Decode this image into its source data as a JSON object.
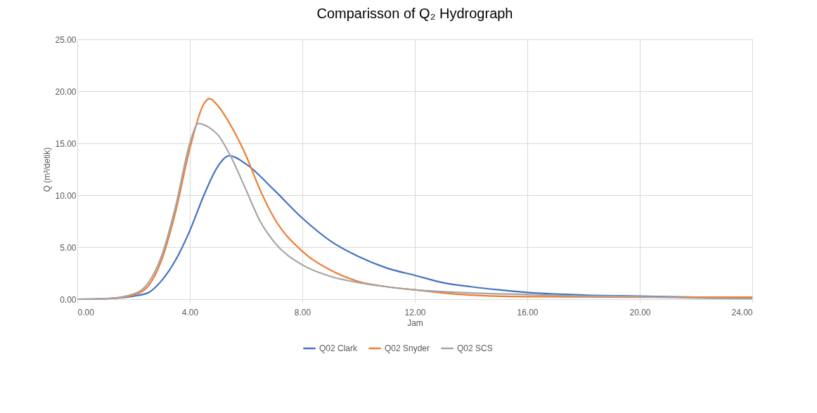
{
  "chart_data": {
    "type": "line",
    "title": "Comparisson of Q₂ Hydrograph",
    "xlabel": "Jam",
    "ylabel": "Q (m³/detik)",
    "series": [
      {
        "name": "Q02 Clark",
        "color": "#4472c4",
        "x": [
          0,
          1,
          2,
          2.5,
          3,
          3.5,
          4,
          4.5,
          5,
          5.4,
          6,
          7,
          8,
          9,
          10,
          11,
          12,
          13,
          14,
          15,
          16,
          18,
          20,
          22,
          24
        ],
        "values": [
          0,
          0.05,
          0.3,
          0.6,
          1.8,
          3.8,
          6.6,
          10,
          12.8,
          13.8,
          13.0,
          10.5,
          7.8,
          5.6,
          4.1,
          3.0,
          2.3,
          1.6,
          1.2,
          0.9,
          0.65,
          0.4,
          0.3,
          0.2,
          0.15
        ]
      },
      {
        "name": "Q02 Snyder",
        "color": "#ed7d31",
        "x": [
          0,
          1,
          2,
          2.5,
          3,
          3.5,
          4,
          4.5,
          4.7,
          5,
          5.5,
          6,
          6.5,
          7,
          8,
          9,
          10,
          11,
          12,
          13,
          14,
          16,
          20,
          24
        ],
        "values": [
          0,
          0.05,
          0.4,
          1.2,
          3.8,
          8.5,
          14.5,
          18.8,
          19.3,
          18.6,
          16.5,
          13.8,
          10.5,
          7.8,
          4.6,
          2.8,
          1.7,
          1.2,
          0.9,
          0.6,
          0.4,
          0.25,
          0.2,
          0.2
        ]
      },
      {
        "name": "Q02 SCS",
        "color": "#a5a5a5",
        "x": [
          0,
          1,
          2,
          2.5,
          3,
          3.5,
          4,
          4.3,
          4.7,
          5,
          5.5,
          6,
          6.5,
          7,
          8,
          9,
          10,
          11,
          12,
          14,
          16,
          18,
          20,
          22,
          24
        ],
        "values": [
          0,
          0.05,
          0.5,
          1.5,
          4.2,
          9.0,
          15.0,
          16.9,
          16.5,
          15.8,
          13.5,
          10.5,
          7.5,
          5.5,
          3.3,
          2.2,
          1.6,
          1.2,
          0.9,
          0.6,
          0.45,
          0.3,
          0.25,
          0.1,
          0.05
        ]
      }
    ],
    "xlim": [
      0,
      24
    ],
    "xticks": [
      {
        "value": 0,
        "label": "0.00"
      },
      {
        "value": 4,
        "label": "4.00"
      },
      {
        "value": 8,
        "label": "8.00"
      },
      {
        "value": 12,
        "label": "12.00"
      },
      {
        "value": 16,
        "label": "16.00"
      },
      {
        "value": 20,
        "label": "20.00"
      },
      {
        "value": 24,
        "label": "24.00"
      }
    ],
    "ylim": [
      0,
      25
    ],
    "yticks": [
      {
        "value": 0,
        "label": "0.00"
      },
      {
        "value": 5,
        "label": "5.00"
      },
      {
        "value": 10,
        "label": "10.00"
      },
      {
        "value": 15,
        "label": "15.00"
      },
      {
        "value": 20,
        "label": "20.00"
      },
      {
        "value": 25,
        "label": "25.00"
      }
    ],
    "grid": true,
    "legend": "bottom",
    "marker": "none",
    "line_style": "solid"
  }
}
